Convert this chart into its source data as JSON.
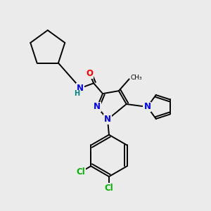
{
  "bg_color": "#ebebeb",
  "bond_color": "#000000",
  "atom_colors": {
    "N": "#0000ff",
    "O": "#ff0000",
    "Cl": "#00b300",
    "H": "#008080",
    "C": "#000000"
  },
  "figsize": [
    3.0,
    3.0
  ],
  "dpi": 100,
  "bond_lw": 1.4,
  "font_size": 8.5
}
